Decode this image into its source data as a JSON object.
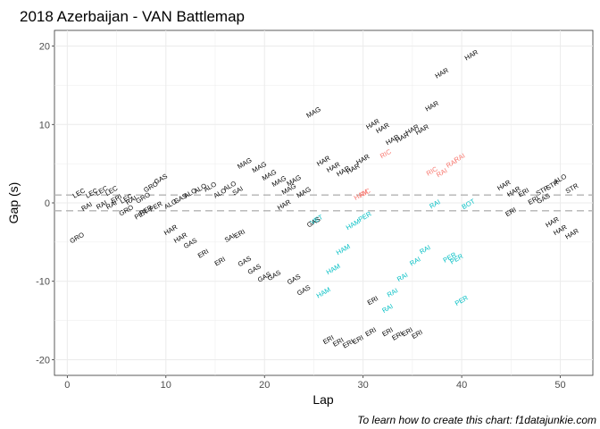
{
  "chart_data": {
    "type": "scatter",
    "title": "2018 Azerbaijan - VAN Battlemap",
    "xlabel": "Lap",
    "ylabel": "Gap (s)",
    "caption": "To learn how to create this chart: f1datajunkie.com",
    "xlim": [
      -1.3,
      53.3
    ],
    "ylim": [
      -22,
      22
    ],
    "x_ticks": [
      0,
      10,
      20,
      30,
      40,
      50
    ],
    "y_ticks": [
      -20,
      -10,
      0,
      10,
      20
    ],
    "grid": true,
    "reference_lines": [
      1,
      -1
    ],
    "colors": {
      "black": "#000000",
      "red": "#f8766d",
      "cyan": "#00bfc4"
    },
    "points": [
      {
        "x": 1,
        "y": -4.5,
        "label": "GRO",
        "c": "black"
      },
      {
        "x": 1.2,
        "y": 1.2,
        "label": "LEC",
        "c": "black"
      },
      {
        "x": 2,
        "y": -0.5,
        "label": "RAI",
        "c": "black"
      },
      {
        "x": 2.5,
        "y": 1.2,
        "label": "LEC",
        "c": "black"
      },
      {
        "x": 3.5,
        "y": -0.3,
        "label": "RAI",
        "c": "black"
      },
      {
        "x": 3.5,
        "y": 1.5,
        "label": "LEC",
        "c": "black"
      },
      {
        "x": 4.5,
        "y": -0.3,
        "label": "RAI",
        "c": "black"
      },
      {
        "x": 4.5,
        "y": 1.5,
        "label": "LEC",
        "c": "black"
      },
      {
        "x": 5,
        "y": 0.5,
        "label": "ERI",
        "c": "black"
      },
      {
        "x": 6,
        "y": 0.5,
        "label": "LEC",
        "c": "black"
      },
      {
        "x": 6,
        "y": -1,
        "label": "GRO",
        "c": "black"
      },
      {
        "x": 6.5,
        "y": 0.3,
        "label": "RAI",
        "c": "black"
      },
      {
        "x": 7.5,
        "y": -1.5,
        "label": "PER",
        "c": "black"
      },
      {
        "x": 7.7,
        "y": 0.6,
        "label": "GRO",
        "c": "black"
      },
      {
        "x": 8,
        "y": -1,
        "label": "PER",
        "c": "black"
      },
      {
        "x": 8.5,
        "y": 2,
        "label": "GRO",
        "c": "black"
      },
      {
        "x": 9,
        "y": -0.5,
        "label": "PER",
        "c": "black"
      },
      {
        "x": 9.5,
        "y": 3,
        "label": "GAS",
        "c": "black"
      },
      {
        "x": 10.5,
        "y": -3.5,
        "label": "HAR",
        "c": "black"
      },
      {
        "x": 10.5,
        "y": -0.2,
        "label": "ALO",
        "c": "black"
      },
      {
        "x": 11.5,
        "y": 0.5,
        "label": "GAS",
        "c": "black"
      },
      {
        "x": 11.5,
        "y": -4.5,
        "label": "HAR",
        "c": "black"
      },
      {
        "x": 12.5,
        "y": 1.2,
        "label": "ALO",
        "c": "black"
      },
      {
        "x": 12.5,
        "y": -5.2,
        "label": "GAS",
        "c": "black"
      },
      {
        "x": 13.5,
        "y": 1.8,
        "label": "ALO",
        "c": "black"
      },
      {
        "x": 13.8,
        "y": -6.5,
        "label": "ERI",
        "c": "black"
      },
      {
        "x": 14.5,
        "y": 2,
        "label": "ALO",
        "c": "black"
      },
      {
        "x": 15.5,
        "y": 1.2,
        "label": "ALO",
        "c": "black"
      },
      {
        "x": 15.5,
        "y": -7.5,
        "label": "ERI",
        "c": "black"
      },
      {
        "x": 16.5,
        "y": 2.1,
        "label": "ALO",
        "c": "black"
      },
      {
        "x": 16.5,
        "y": -4.5,
        "label": "SAI",
        "c": "black"
      },
      {
        "x": 17.3,
        "y": 1.5,
        "label": "SAI",
        "c": "black"
      },
      {
        "x": 17.5,
        "y": -4,
        "label": "ERI",
        "c": "black"
      },
      {
        "x": 18,
        "y": 5,
        "label": "MAG",
        "c": "black"
      },
      {
        "x": 18,
        "y": -7.5,
        "label": "GAS",
        "c": "black"
      },
      {
        "x": 19,
        "y": -8.5,
        "label": "GAS",
        "c": "black"
      },
      {
        "x": 19.5,
        "y": 4.5,
        "label": "MAG",
        "c": "black"
      },
      {
        "x": 20,
        "y": -9.5,
        "label": "GAS",
        "c": "black"
      },
      {
        "x": 20.5,
        "y": 3.5,
        "label": "MAG",
        "c": "black"
      },
      {
        "x": 21,
        "y": -9.3,
        "label": "GAS",
        "c": "black"
      },
      {
        "x": 21.5,
        "y": 2.7,
        "label": "MAG",
        "c": "black"
      },
      {
        "x": 22,
        "y": -0.3,
        "label": "HAR",
        "c": "black"
      },
      {
        "x": 22.5,
        "y": 1.7,
        "label": "MAG",
        "c": "black"
      },
      {
        "x": 23,
        "y": 2.8,
        "label": "MAG",
        "c": "black"
      },
      {
        "x": 23,
        "y": -9.8,
        "label": "GAS",
        "c": "black"
      },
      {
        "x": 24,
        "y": 1.3,
        "label": "MAG",
        "c": "black"
      },
      {
        "x": 24,
        "y": -11.2,
        "label": "GAS",
        "c": "black"
      },
      {
        "x": 25,
        "y": 11.5,
        "label": "MAG",
        "c": "black"
      },
      {
        "x": 25,
        "y": -2.5,
        "label": "GAS",
        "c": "black"
      },
      {
        "x": 25.3,
        "y": -2.2,
        "label": "VET",
        "c": "cyan"
      },
      {
        "x": 26,
        "y": 5.3,
        "label": "HAR",
        "c": "black"
      },
      {
        "x": 26,
        "y": -11.5,
        "label": "HAM",
        "c": "cyan"
      },
      {
        "x": 26.5,
        "y": -17.5,
        "label": "ERI",
        "c": "black"
      },
      {
        "x": 27,
        "y": 4.5,
        "label": "HAR",
        "c": "black"
      },
      {
        "x": 27,
        "y": -8.5,
        "label": "HAM",
        "c": "cyan"
      },
      {
        "x": 27.5,
        "y": -17.8,
        "label": "ERI",
        "c": "black"
      },
      {
        "x": 28,
        "y": 4,
        "label": "HAR",
        "c": "black"
      },
      {
        "x": 28,
        "y": -6,
        "label": "HAM",
        "c": "cyan"
      },
      {
        "x": 28.5,
        "y": -18,
        "label": "ERI",
        "c": "black"
      },
      {
        "x": 29,
        "y": 4.3,
        "label": "HAR",
        "c": "black"
      },
      {
        "x": 29,
        "y": -2.8,
        "label": "HAM",
        "c": "cyan"
      },
      {
        "x": 29.5,
        "y": -17.5,
        "label": "ERI",
        "c": "black"
      },
      {
        "x": 29.8,
        "y": 1,
        "label": "HAM",
        "c": "red"
      },
      {
        "x": 30.2,
        "y": 1.2,
        "label": "RIC",
        "c": "red"
      },
      {
        "x": 30.2,
        "y": -1.8,
        "label": "PER",
        "c": "cyan"
      },
      {
        "x": 30,
        "y": 5.5,
        "label": "HAR",
        "c": "black"
      },
      {
        "x": 30.8,
        "y": -16.5,
        "label": "ERI",
        "c": "black"
      },
      {
        "x": 31,
        "y": 10,
        "label": "HAR",
        "c": "black"
      },
      {
        "x": 31,
        "y": -12.5,
        "label": "ERI",
        "c": "black"
      },
      {
        "x": 32,
        "y": 9.5,
        "label": "HAR",
        "c": "black"
      },
      {
        "x": 32.3,
        "y": 6.2,
        "label": "RIC",
        "c": "red"
      },
      {
        "x": 32.5,
        "y": -13.5,
        "label": "RAI",
        "c": "cyan"
      },
      {
        "x": 32.5,
        "y": -16.5,
        "label": "ERI",
        "c": "black"
      },
      {
        "x": 33,
        "y": 8,
        "label": "HAR",
        "c": "black"
      },
      {
        "x": 33,
        "y": -11.5,
        "label": "RAI",
        "c": "cyan"
      },
      {
        "x": 33.5,
        "y": -17,
        "label": "ERI",
        "c": "black"
      },
      {
        "x": 34,
        "y": 8.3,
        "label": "HAR",
        "c": "black"
      },
      {
        "x": 34,
        "y": -9.5,
        "label": "RAI",
        "c": "cyan"
      },
      {
        "x": 34.5,
        "y": -16.5,
        "label": "ERI",
        "c": "black"
      },
      {
        "x": 35,
        "y": 9.3,
        "label": "HAR",
        "c": "black"
      },
      {
        "x": 35.3,
        "y": -7.5,
        "label": "RAI",
        "c": "cyan"
      },
      {
        "x": 35.5,
        "y": -16.8,
        "label": "ERI",
        "c": "black"
      },
      {
        "x": 36,
        "y": 9.3,
        "label": "HAR",
        "c": "black"
      },
      {
        "x": 36.3,
        "y": -6,
        "label": "RAI",
        "c": "cyan"
      },
      {
        "x": 37,
        "y": 12.3,
        "label": "HAR",
        "c": "black"
      },
      {
        "x": 37,
        "y": 4,
        "label": "RIC",
        "c": "red"
      },
      {
        "x": 37.3,
        "y": -0.2,
        "label": "RAI",
        "c": "cyan"
      },
      {
        "x": 38,
        "y": 3.8,
        "label": "RAI",
        "c": "red"
      },
      {
        "x": 38,
        "y": 16.5,
        "label": "HAR",
        "c": "black"
      },
      {
        "x": 38.8,
        "y": -7,
        "label": "PER",
        "c": "cyan"
      },
      {
        "x": 39,
        "y": 5,
        "label": "RAI",
        "c": "red"
      },
      {
        "x": 39.5,
        "y": -7.2,
        "label": "PER",
        "c": "cyan"
      },
      {
        "x": 39.8,
        "y": 5.7,
        "label": "RAI",
        "c": "red"
      },
      {
        "x": 40,
        "y": -12.5,
        "label": "PER",
        "c": "cyan"
      },
      {
        "x": 40.7,
        "y": -0.2,
        "label": "BOT",
        "c": "cyan"
      },
      {
        "x": 41,
        "y": 18.8,
        "label": "HAR",
        "c": "black"
      },
      {
        "x": 44.3,
        "y": 2.2,
        "label": "HAR",
        "c": "black"
      },
      {
        "x": 45,
        "y": -1.2,
        "label": "ERI",
        "c": "black"
      },
      {
        "x": 45.3,
        "y": 1.4,
        "label": "HAR",
        "c": "black"
      },
      {
        "x": 46.3,
        "y": 1.3,
        "label": "ERI",
        "c": "black"
      },
      {
        "x": 47.3,
        "y": 0.3,
        "label": "ERI",
        "c": "black"
      },
      {
        "x": 48.2,
        "y": 1.5,
        "label": "STR",
        "c": "black"
      },
      {
        "x": 48.3,
        "y": 0.5,
        "label": "GAS",
        "c": "black"
      },
      {
        "x": 49.2,
        "y": 2.2,
        "label": "STR",
        "c": "black"
      },
      {
        "x": 49.2,
        "y": -2.5,
        "label": "HAR",
        "c": "black"
      },
      {
        "x": 50,
        "y": 3,
        "label": "ALO",
        "c": "black"
      },
      {
        "x": 50,
        "y": -3.5,
        "label": "HAR",
        "c": "black"
      },
      {
        "x": 51.2,
        "y": 1.8,
        "label": "STR",
        "c": "black"
      },
      {
        "x": 51.2,
        "y": -4,
        "label": "HAR",
        "c": "black"
      }
    ]
  }
}
